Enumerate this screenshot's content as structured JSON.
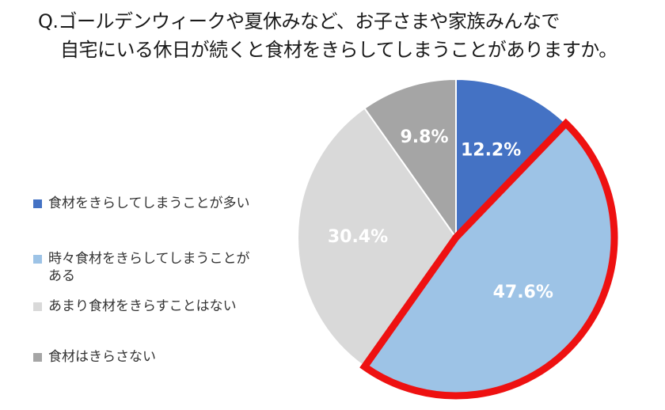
{
  "title": {
    "line1": "Q.ゴールデンウィークや夏休みなど、お子さまや家族みんなで",
    "line2": "自宅にいる休日が続くと食材をきらしてしまうことがありますか。"
  },
  "chart_data": {
    "type": "pie",
    "start_angle_deg": 0,
    "direction": "clockwise",
    "highlight": {
      "slice_index": 1,
      "outline_color": "#ee1111"
    },
    "slices": [
      {
        "label": "食材をきらしてしまうことが多い",
        "value": 12.2,
        "value_label": "12.2%",
        "color": "#4472c4"
      },
      {
        "label": "時々食材をきらしてしまうことがある",
        "value": 47.6,
        "value_label": "47.6%",
        "color": "#9dc3e6"
      },
      {
        "label": "あまり食材をきらすことはない",
        "value": 30.4,
        "value_label": "30.4%",
        "color": "#d9d9d9"
      },
      {
        "label": "食材はきらさない",
        "value": 9.8,
        "value_label": "9.8%",
        "color": "#a5a5a5"
      }
    ],
    "legend": {
      "position": "left",
      "items": [
        {
          "line1": "食材をきらしてしまうことが多い",
          "line2": ""
        },
        {
          "line1": "時々食材をきらしてしまうことが",
          "line2": "ある"
        },
        {
          "line1": "あまり食材をきらすことはない",
          "line2": ""
        },
        {
          "line1": "食材はきらさない",
          "line2": ""
        }
      ]
    }
  }
}
